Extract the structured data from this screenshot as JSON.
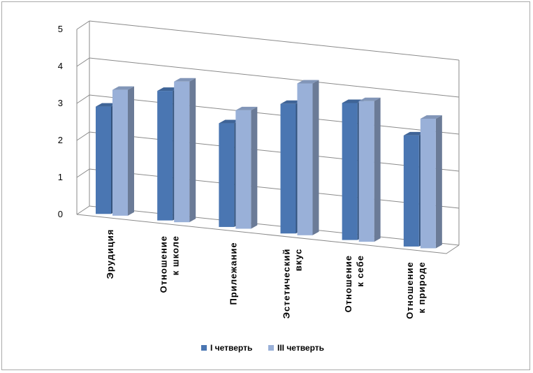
{
  "chart_data": {
    "type": "bar",
    "categories": [
      [
        "Эрудиция"
      ],
      [
        "Отношение",
        "к школе"
      ],
      [
        "Прилежание"
      ],
      [
        "Эстетический",
        "вкус"
      ],
      [
        "Отношение",
        "к себе"
      ],
      [
        "Отношение",
        "к природе"
      ]
    ],
    "series": [
      {
        "name": "I четверть",
        "values": [
          2.9,
          3.5,
          2.8,
          3.5,
          3.7,
          3.0
        ],
        "color": "#4a76b2"
      },
      {
        "name": "III четверть",
        "values": [
          3.4,
          3.8,
          3.2,
          4.1,
          3.8,
          3.5
        ],
        "color": "#99b0d8"
      }
    ],
    "y_ticks": [
      "0",
      "1",
      "2",
      "3",
      "4",
      "5"
    ],
    "ylim": [
      0,
      5
    ],
    "legend_position": "bottom",
    "grid": true,
    "three_d": true
  }
}
